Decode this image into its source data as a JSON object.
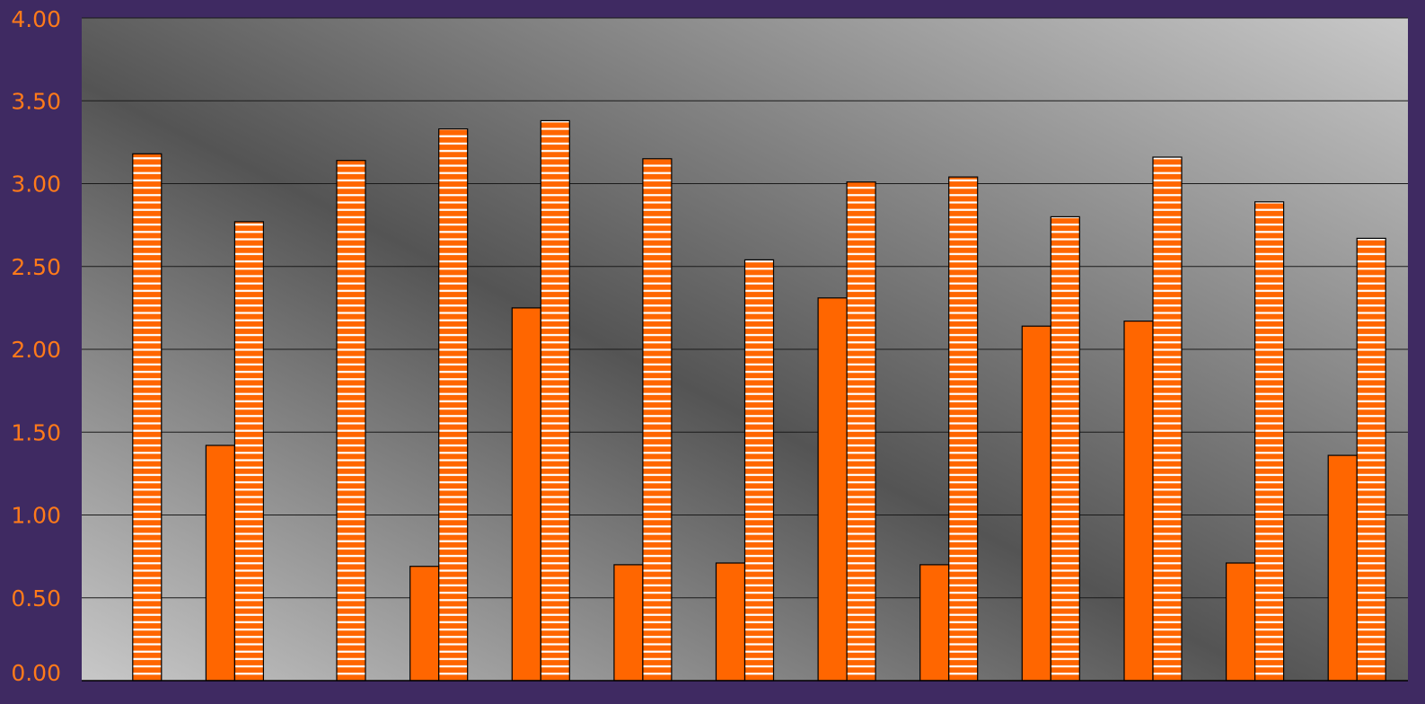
{
  "colors": {
    "background": "#3f2a62",
    "bar": "#ff6600",
    "stripe": "#ffffff",
    "tick_label": "#ff7a1a",
    "gridline": "#1a1a1a",
    "plot_dark": "#545454",
    "plot_light": "#c8c8c8"
  },
  "chart_data": {
    "type": "bar",
    "title": "",
    "xlabel": "",
    "ylabel": "",
    "ylim": [
      0,
      4
    ],
    "y_ticks": [
      "0.00",
      "0.50",
      "1.00",
      "1.50",
      "2.00",
      "2.50",
      "3.00",
      "3.50",
      "4.00"
    ],
    "grid": true,
    "legend": "none",
    "categories": [
      "",
      "",
      "",
      "",
      "",
      "",
      "",
      "",
      "",
      "",
      "",
      "",
      ""
    ],
    "series": [
      {
        "style": "solid",
        "values": [
          null,
          1.42,
          null,
          0.69,
          2.25,
          0.7,
          0.71,
          2.31,
          0.7,
          2.14,
          2.17,
          0.71,
          1.36
        ]
      },
      {
        "style": "horizontal-stripes",
        "values": [
          3.18,
          2.77,
          3.14,
          3.33,
          3.38,
          3.15,
          2.54,
          3.01,
          3.04,
          2.8,
          3.16,
          2.89,
          2.67
        ]
      }
    ]
  }
}
